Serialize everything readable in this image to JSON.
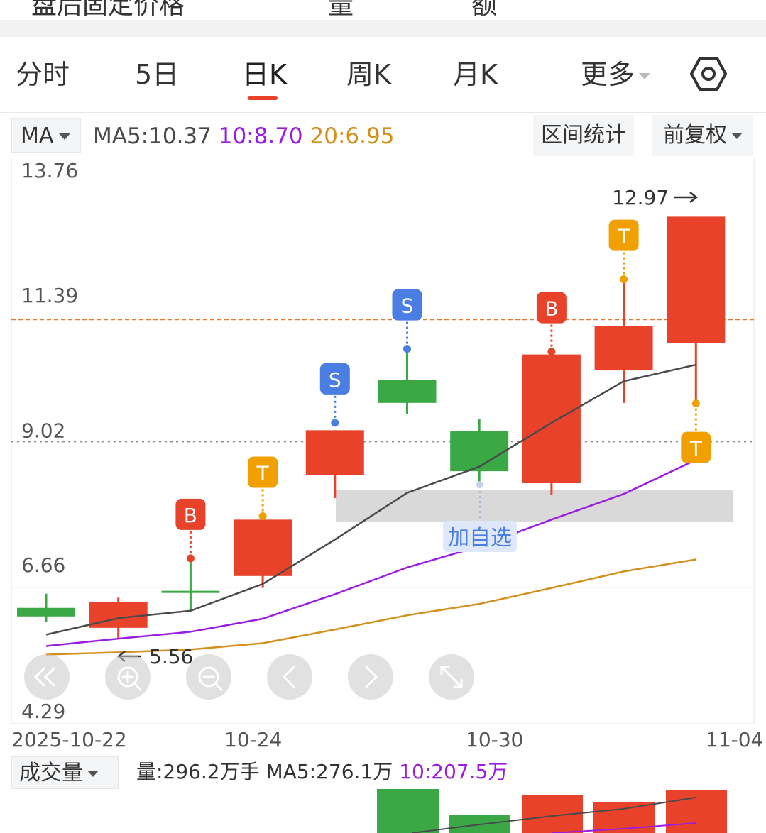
{
  "top_strip": {
    "left_text": "盘后固定价格",
    "mid_text": "量",
    "right_text": "额"
  },
  "tabs": [
    {
      "label": "分时"
    },
    {
      "label": "5日"
    },
    {
      "label": "日K",
      "active": true
    },
    {
      "label": "周K"
    },
    {
      "label": "月K"
    },
    {
      "label": "更多"
    }
  ],
  "settings_icon": "hexagon-settings-icon",
  "ma_bar": {
    "selector": "MA",
    "ma5": "MA5:10.37",
    "ma10": "10:8.70",
    "ma20": "20:6.95",
    "interval_stats": "区间统计",
    "adjust": "前复权"
  },
  "colors": {
    "up": "#e8432a",
    "down": "#3aa845",
    "ma5": "#4a4a4a",
    "ma10": "#9b1de0",
    "ma20": "#d4901c",
    "buy_badge": "#e8432a",
    "sell_badge": "#4a7ee3",
    "t_badge": "#f0a000"
  },
  "chart_data": {
    "type": "candlestick",
    "y_labels": [
      "13.76",
      "11.39",
      "9.02",
      "6.66",
      "4.29"
    ],
    "ylim": [
      4.29,
      13.76
    ],
    "x_labels": [
      "2025-10-22",
      "10-24",
      "10-30",
      "11-04"
    ],
    "candles": [
      {
        "open": 5.95,
        "close": 6.1,
        "high": 6.35,
        "low": 5.85
      },
      {
        "open": 6.2,
        "close": 5.75,
        "high": 6.28,
        "low": 5.56
      },
      {
        "open": 6.4,
        "close": 6.4,
        "high": 6.97,
        "low": 6.05
      },
      {
        "open": 7.65,
        "close": 6.66,
        "high": 7.65,
        "low": 6.45
      },
      {
        "open": 9.22,
        "close": 8.43,
        "high": 9.22,
        "low": 8.03
      },
      {
        "open": 9.7,
        "close": 10.1,
        "high": 10.6,
        "low": 9.5
      },
      {
        "open": 8.5,
        "close": 9.2,
        "high": 9.42,
        "low": 8.3
      },
      {
        "open": 10.55,
        "close": 8.29,
        "high": 10.55,
        "low": 8.08
      },
      {
        "open": 11.05,
        "close": 10.27,
        "high": 11.82,
        "low": 9.7
      },
      {
        "open": 12.97,
        "close": 10.75,
        "high": 12.97,
        "low": 9.75
      }
    ],
    "ma5": [
      5.63,
      5.92,
      6.05,
      6.52,
      7.3,
      8.12,
      8.58,
      9.35,
      10.08,
      10.37
    ],
    "ma10": [
      5.43,
      5.56,
      5.68,
      5.91,
      6.34,
      6.81,
      7.18,
      7.65,
      8.1,
      8.7
    ],
    "ma20": [
      5.28,
      5.32,
      5.37,
      5.48,
      5.72,
      5.97,
      6.17,
      6.45,
      6.74,
      6.95
    ],
    "max_label": "12.97",
    "min_label": "5.56",
    "reference_price": 11.39,
    "badges": [
      {
        "candle": 2,
        "type": "B",
        "dot": 6.97
      },
      {
        "candle": 3,
        "type": "T",
        "dot": 7.71
      },
      {
        "candle": 4,
        "type": "S",
        "dot": 9.35
      },
      {
        "candle": 5,
        "type": "S",
        "dot": 10.65
      },
      {
        "candle": 7,
        "type": "B",
        "dot": 10.6
      },
      {
        "candle": 8,
        "type": "T",
        "dot": 11.87
      },
      {
        "candle": 9,
        "type": "T",
        "dot": 9.69,
        "below": true
      }
    ],
    "add_watch_label": "加自选"
  },
  "chart_controls": [
    {
      "name": "scroll-left-fast-icon"
    },
    {
      "name": "zoom-in-icon"
    },
    {
      "name": "zoom-out-icon"
    },
    {
      "name": "chevron-left-icon"
    },
    {
      "name": "chevron-right-icon"
    },
    {
      "name": "fullscreen-icon"
    }
  ],
  "volume_bar": {
    "selector": "成交量",
    "vol": "量:296.2万手",
    "ma5": "MA5:276.1万",
    "ma10": "10:207.5万"
  }
}
